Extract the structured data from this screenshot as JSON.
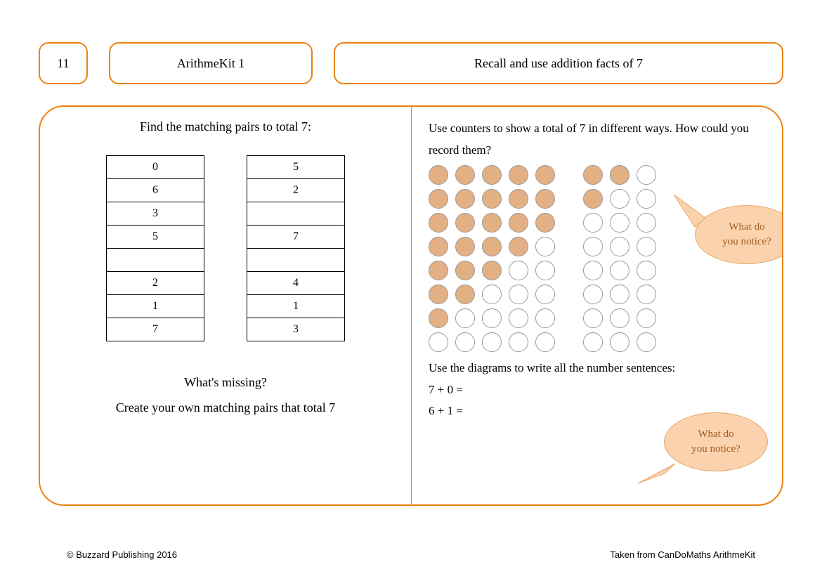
{
  "colors": {
    "accent": "#ee8311",
    "counter_fill": "#e3b084",
    "counter_empty": "#ffffff",
    "counter_border": "#9a9a9a",
    "bubble_fill": "#fad3ae",
    "bubble_border": "#e7a766",
    "bubble_text": "#a15a1e",
    "black": "#000000"
  },
  "header": {
    "number": "11",
    "kit": "ArithmeKit 1",
    "topic": "Recall and use addition facts of 7"
  },
  "left": {
    "title": "Find the matching pairs to total 7:",
    "col1": [
      "0",
      "6",
      "3",
      "5",
      "",
      "2",
      "1",
      "7"
    ],
    "col2": [
      "5",
      "2",
      "",
      "7",
      "",
      "4",
      "1",
      "3"
    ],
    "q1": "What's missing?",
    "q2": "Create your own matching pairs that total 7"
  },
  "right": {
    "intro": "Use counters to show a total of 7 in different ways. How could you record them?",
    "counters": {
      "rows": 8,
      "total_per_row": 8,
      "filled_per_row": [
        7,
        6,
        5,
        4,
        3,
        2,
        1,
        0
      ],
      "split_after": 5
    },
    "prompt2": "Use the diagrams to write all the number sentences:",
    "sentences": [
      "7 + 0 =",
      "6 + 1 ="
    ],
    "bubble1": "What do\nyou notice?",
    "bubble2": "What do\nyou notice?"
  },
  "footer": {
    "left": "© Buzzard Publishing 2016",
    "right": "Taken from CanDoMaths ArithmeKit"
  }
}
